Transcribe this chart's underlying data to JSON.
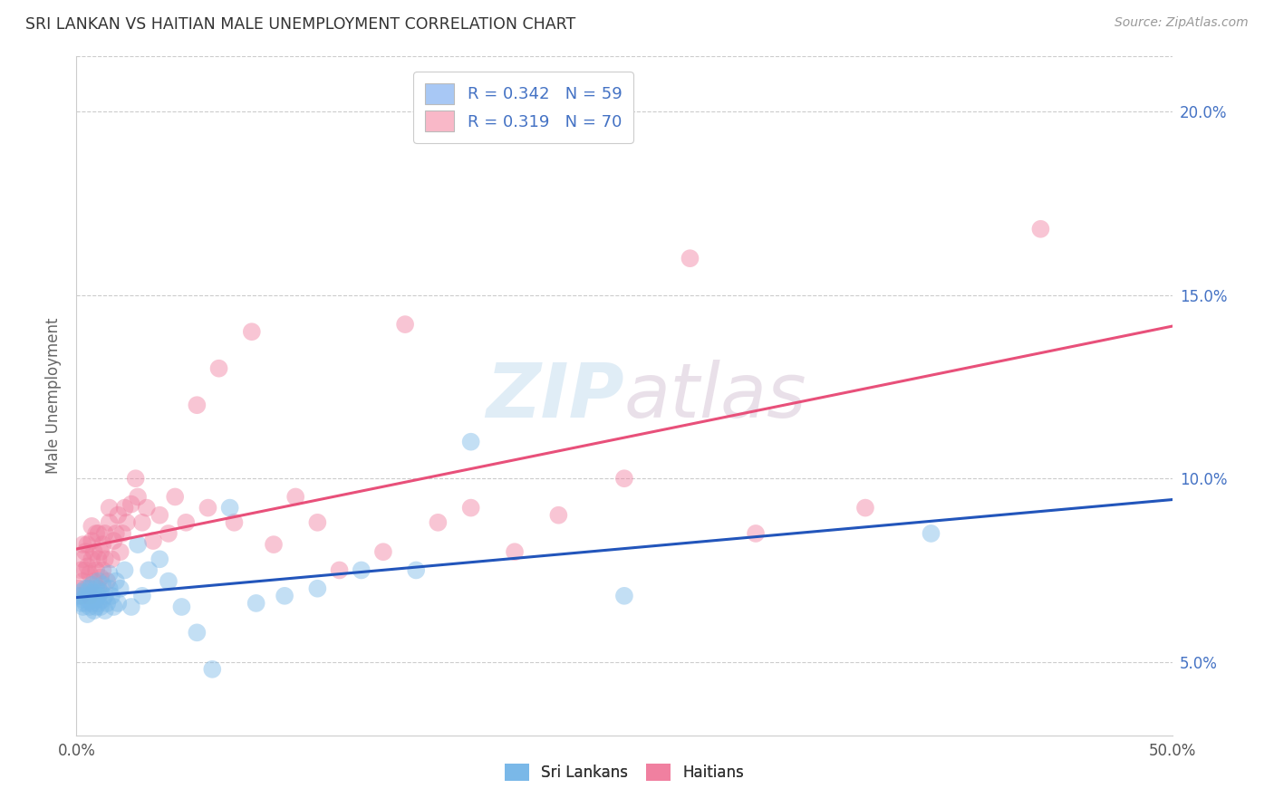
{
  "title": "SRI LANKAN VS HAITIAN MALE UNEMPLOYMENT CORRELATION CHART",
  "source": "Source: ZipAtlas.com",
  "ylabel": "Male Unemployment",
  "xlim": [
    0.0,
    0.5
  ],
  "ylim": [
    0.03,
    0.215
  ],
  "ytick_vals": [
    0.05,
    0.1,
    0.15,
    0.2
  ],
  "xtick_vals": [
    0.0,
    0.5
  ],
  "xtick_labels": [
    "0.0%",
    "50.0%"
  ],
  "ytick_labels": [
    "5.0%",
    "10.0%",
    "15.0%",
    "20.0%"
  ],
  "legend_sri_color": "#a8c8f5",
  "legend_hai_color": "#f9b8c8",
  "sri_R": "0.342",
  "sri_N": "59",
  "hai_R": "0.319",
  "hai_N": "70",
  "sri_lankan_color": "#7ab8e8",
  "haitian_color": "#f080a0",
  "trend_sri_color": "#2255bb",
  "trend_haiti_color": "#e8507a",
  "watermark_color": "#d8e8f0",
  "sri_lankan_x": [
    0.001,
    0.002,
    0.002,
    0.003,
    0.003,
    0.004,
    0.004,
    0.004,
    0.005,
    0.005,
    0.005,
    0.006,
    0.006,
    0.006,
    0.007,
    0.007,
    0.007,
    0.008,
    0.008,
    0.008,
    0.009,
    0.009,
    0.009,
    0.01,
    0.01,
    0.01,
    0.011,
    0.011,
    0.012,
    0.012,
    0.013,
    0.013,
    0.014,
    0.015,
    0.015,
    0.016,
    0.017,
    0.018,
    0.019,
    0.02,
    0.022,
    0.025,
    0.028,
    0.03,
    0.033,
    0.038,
    0.042,
    0.048,
    0.055,
    0.062,
    0.07,
    0.082,
    0.095,
    0.11,
    0.13,
    0.155,
    0.18,
    0.25,
    0.39
  ],
  "sri_lankan_y": [
    0.068,
    0.066,
    0.069,
    0.065,
    0.067,
    0.066,
    0.068,
    0.07,
    0.063,
    0.067,
    0.069,
    0.065,
    0.068,
    0.07,
    0.066,
    0.068,
    0.071,
    0.064,
    0.067,
    0.069,
    0.065,
    0.067,
    0.07,
    0.066,
    0.068,
    0.072,
    0.065,
    0.069,
    0.067,
    0.071,
    0.064,
    0.068,
    0.066,
    0.07,
    0.074,
    0.068,
    0.065,
    0.072,
    0.066,
    0.07,
    0.075,
    0.065,
    0.082,
    0.068,
    0.075,
    0.078,
    0.072,
    0.065,
    0.058,
    0.048,
    0.092,
    0.066,
    0.068,
    0.07,
    0.075,
    0.075,
    0.11,
    0.068,
    0.085
  ],
  "haitian_x": [
    0.001,
    0.002,
    0.002,
    0.003,
    0.003,
    0.003,
    0.004,
    0.004,
    0.005,
    0.005,
    0.005,
    0.006,
    0.006,
    0.007,
    0.007,
    0.007,
    0.008,
    0.008,
    0.009,
    0.009,
    0.01,
    0.01,
    0.01,
    0.011,
    0.011,
    0.012,
    0.012,
    0.013,
    0.013,
    0.014,
    0.015,
    0.015,
    0.016,
    0.017,
    0.018,
    0.019,
    0.02,
    0.021,
    0.022,
    0.023,
    0.025,
    0.027,
    0.028,
    0.03,
    0.032,
    0.035,
    0.038,
    0.042,
    0.045,
    0.05,
    0.055,
    0.06,
    0.065,
    0.072,
    0.08,
    0.09,
    0.1,
    0.11,
    0.12,
    0.14,
    0.15,
    0.165,
    0.18,
    0.2,
    0.22,
    0.25,
    0.28,
    0.31,
    0.36,
    0.44
  ],
  "haitian_y": [
    0.07,
    0.075,
    0.068,
    0.072,
    0.078,
    0.082,
    0.075,
    0.08,
    0.07,
    0.076,
    0.082,
    0.068,
    0.074,
    0.078,
    0.083,
    0.087,
    0.072,
    0.08,
    0.075,
    0.085,
    0.07,
    0.078,
    0.085,
    0.073,
    0.08,
    0.075,
    0.082,
    0.078,
    0.085,
    0.072,
    0.088,
    0.092,
    0.078,
    0.083,
    0.085,
    0.09,
    0.08,
    0.085,
    0.092,
    0.088,
    0.093,
    0.1,
    0.095,
    0.088,
    0.092,
    0.083,
    0.09,
    0.085,
    0.095,
    0.088,
    0.12,
    0.092,
    0.13,
    0.088,
    0.14,
    0.082,
    0.095,
    0.088,
    0.075,
    0.08,
    0.142,
    0.088,
    0.092,
    0.08,
    0.09,
    0.1,
    0.16,
    0.085,
    0.092,
    0.168
  ]
}
